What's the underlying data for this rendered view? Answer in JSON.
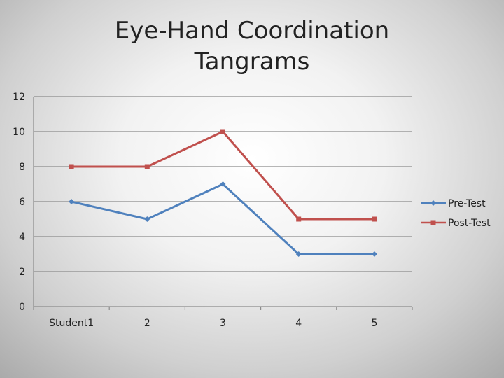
{
  "chart_data": {
    "type": "line",
    "title_lines": [
      "Eye-Hand Coordination",
      "Tangrams"
    ],
    "categories": [
      "Student1",
      "2",
      "3",
      "4",
      "5"
    ],
    "ylim": [
      0,
      12
    ],
    "yticks": [
      0,
      2,
      4,
      6,
      8,
      10,
      12
    ],
    "grid": true,
    "legend_position": "right",
    "series": [
      {
        "name": "Pre-Test",
        "values": [
          6,
          5,
          7,
          3,
          3
        ],
        "color": "#4f81bd",
        "marker": "diamond"
      },
      {
        "name": "Post-Test",
        "values": [
          8,
          8,
          10,
          5,
          5
        ],
        "color": "#c0504d",
        "marker": "square"
      }
    ]
  }
}
